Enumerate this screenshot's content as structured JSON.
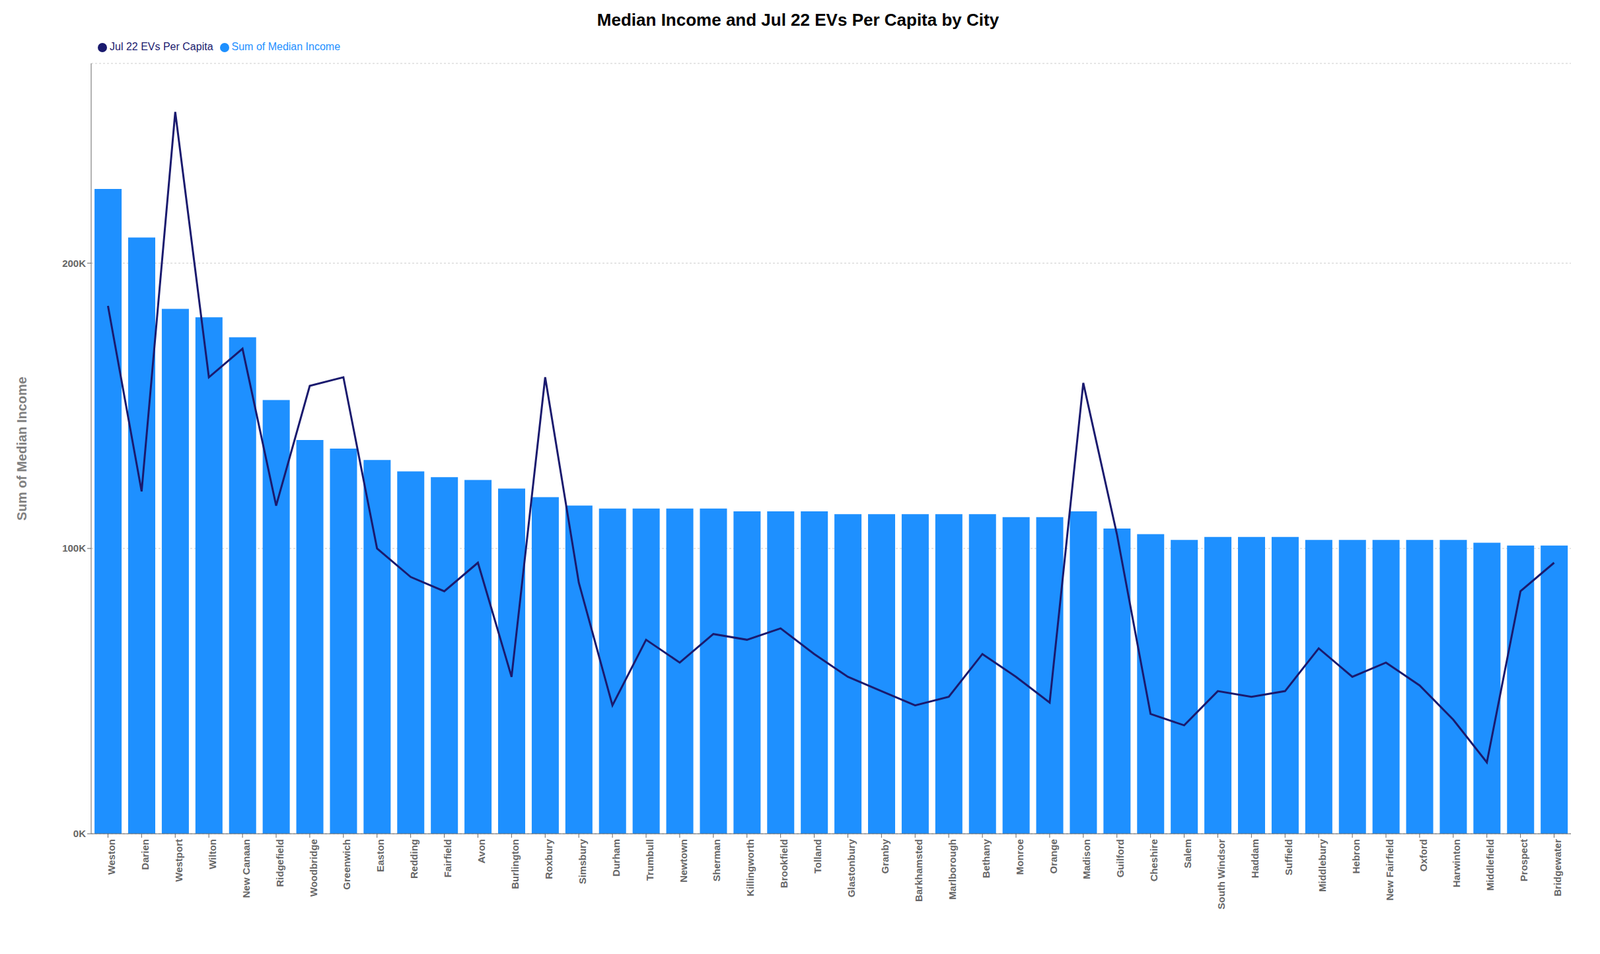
{
  "chart_data": {
    "type": "bar",
    "title": "Median Income and Jul 22 EVs Per Capita by City",
    "ylabel": "Sum of Median Income",
    "categories": [
      "Weston",
      "Darien",
      "Westport",
      "Wilton",
      "New Canaan",
      "Ridgefield",
      "Woodbridge",
      "Greenwich",
      "Easton",
      "Redding",
      "Fairfield",
      "Avon",
      "Burlington",
      "Roxbury",
      "Simsbury",
      "Durham",
      "Trumbull",
      "Newtown",
      "Sherman",
      "Killingworth",
      "Brookfield",
      "Tolland",
      "Glastonbury",
      "Granby",
      "Barkhamsted",
      "Marlborough",
      "Bethany",
      "Monroe",
      "Orange",
      "Madison",
      "Guilford",
      "Cheshire",
      "Salem",
      "South Windsor",
      "Haddam",
      "Suffield",
      "Middlebury",
      "Hebron",
      "New Fairfield",
      "Oxford",
      "Harwinton",
      "Middlefield",
      "Prospect",
      "Bridgewater"
    ],
    "series": [
      {
        "name": "Sum of Median Income",
        "type": "bar",
        "color": "#1e90ff",
        "values": [
          226000,
          209000,
          184000,
          181000,
          174000,
          152000,
          138000,
          135000,
          131000,
          127000,
          125000,
          124000,
          121000,
          118000,
          115000,
          114000,
          114000,
          114000,
          114000,
          113000,
          113000,
          113000,
          112000,
          112000,
          112000,
          112000,
          112000,
          111000,
          111000,
          113000,
          107000,
          105000,
          103000,
          104000,
          104000,
          104000,
          103000,
          103000,
          103000,
          103000,
          103000,
          102000,
          101000,
          101000
        ]
      },
      {
        "name": "Jul 22 EVs Per Capita",
        "type": "line",
        "color": "#1a1a6e",
        "values": [
          185000,
          120000,
          253000,
          160000,
          170000,
          115000,
          157000,
          160000,
          100000,
          90000,
          85000,
          95000,
          55000,
          160000,
          88000,
          45000,
          68000,
          60000,
          70000,
          68000,
          72000,
          63000,
          55000,
          50000,
          45000,
          48000,
          63000,
          55000,
          46000,
          158000,
          105000,
          42000,
          38000,
          50000,
          48000,
          50000,
          65000,
          55000,
          60000,
          52000,
          40000,
          25000,
          85000,
          95000
        ]
      }
    ],
    "ylim": [
      0,
      270000
    ],
    "yticks": [
      {
        "value": 0,
        "label": "0K"
      },
      {
        "value": 100000,
        "label": "100K"
      },
      {
        "value": 200000,
        "label": "200K"
      }
    ],
    "grid": true,
    "legend": "upper left"
  }
}
